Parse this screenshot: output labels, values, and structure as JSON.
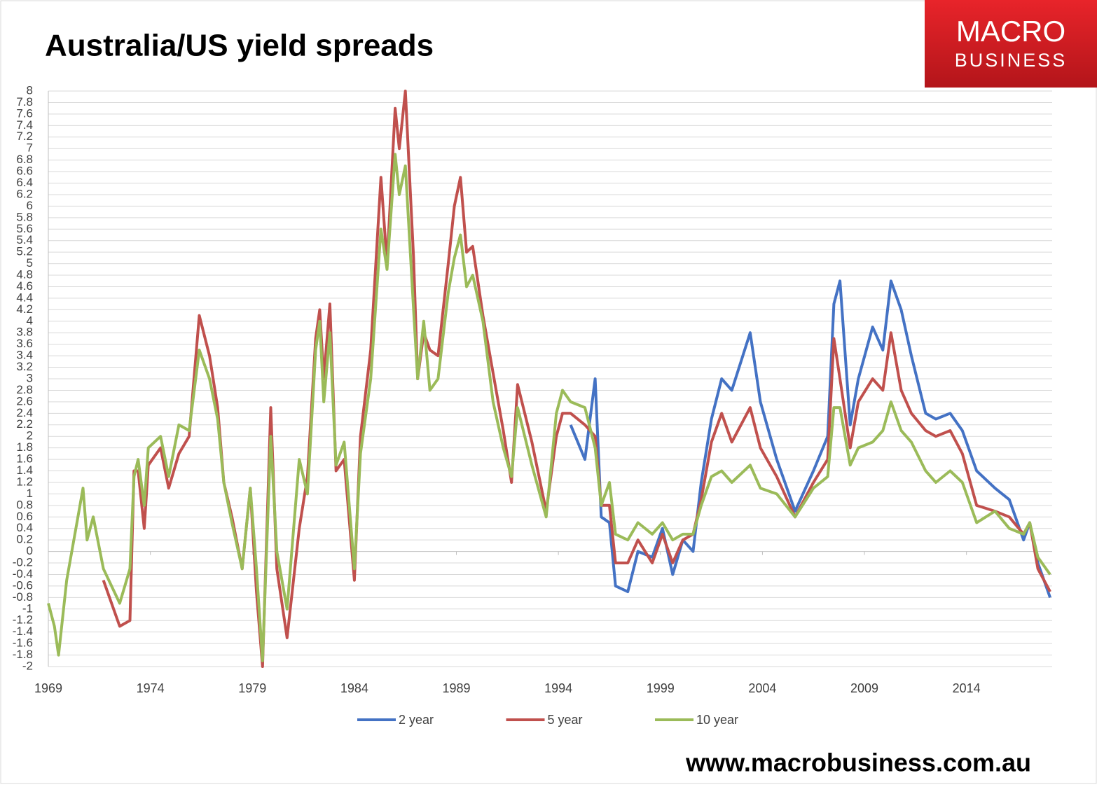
{
  "chart_data": {
    "type": "line",
    "title": "Australia/US yield spreads",
    "x": [
      1969.0,
      1969.3,
      1969.5,
      1969.9,
      1970.4,
      1970.7,
      1970.9,
      1971.2,
      1971.7,
      1972.5,
      1973.0,
      1973.2,
      1973.4,
      1973.7,
      1973.9,
      1974.5,
      1974.9,
      1975.4,
      1975.9,
      1976.4,
      1976.9,
      1977.3,
      1977.6,
      1978.0,
      1978.5,
      1978.9,
      1979.2,
      1979.5,
      1979.9,
      1980.2,
      1980.7,
      1981.3,
      1981.7,
      1982.1,
      1982.3,
      1982.5,
      1982.8,
      1983.1,
      1983.5,
      1984.0,
      1984.3,
      1984.8,
      1985.3,
      1985.6,
      1986.0,
      1986.2,
      1986.5,
      1986.9,
      1987.1,
      1987.4,
      1987.7,
      1988.1,
      1988.6,
      1988.9,
      1989.2,
      1989.5,
      1989.8,
      1990.3,
      1990.8,
      1991.3,
      1991.7,
      1992.0,
      1992.7,
      1993.4,
      1993.9,
      1994.2,
      1994.6,
      1995.3,
      1995.8,
      1996.1,
      1996.5,
      1996.8,
      1997.4,
      1997.9,
      1998.6,
      1999.1,
      1999.6,
      2000.1,
      2000.6,
      2001.0,
      2001.5,
      2002.0,
      2002.5,
      2003.4,
      2003.9,
      2004.7,
      2005.6,
      2006.5,
      2007.2,
      2007.5,
      2007.8,
      2008.3,
      2008.7,
      2009.4,
      2009.9,
      2010.3,
      2010.8,
      2011.3,
      2012.0,
      2012.5,
      2013.2,
      2013.8,
      2014.5,
      2015.4,
      2016.1,
      2016.8,
      2017.1,
      2017.5,
      2018.1
    ],
    "series": [
      {
        "name": "2 year",
        "color": "#4472c4",
        "values": [
          null,
          null,
          null,
          null,
          null,
          null,
          null,
          null,
          null,
          null,
          null,
          null,
          null,
          null,
          null,
          null,
          null,
          null,
          null,
          null,
          null,
          null,
          null,
          null,
          null,
          null,
          null,
          null,
          null,
          null,
          null,
          null,
          null,
          null,
          null,
          null,
          null,
          null,
          null,
          null,
          null,
          null,
          null,
          null,
          null,
          null,
          null,
          null,
          null,
          null,
          null,
          null,
          null,
          null,
          null,
          null,
          null,
          null,
          null,
          null,
          null,
          null,
          null,
          null,
          null,
          null,
          2.2,
          1.6,
          3.0,
          0.6,
          0.5,
          -0.6,
          -0.7,
          0.0,
          -0.1,
          0.4,
          -0.4,
          0.2,
          0.0,
          1.2,
          2.3,
          3.0,
          2.8,
          3.8,
          2.6,
          1.6,
          0.7,
          1.4,
          2.0,
          4.3,
          4.7,
          2.2,
          3.0,
          3.9,
          3.5,
          4.7,
          4.2,
          3.4,
          2.4,
          2.3,
          2.4,
          2.1,
          1.4,
          1.1,
          0.9,
          0.2,
          0.5,
          -0.2,
          -0.8
        ]
      },
      {
        "name": "5 year",
        "color": "#c0504d",
        "values": [
          null,
          null,
          null,
          null,
          null,
          null,
          null,
          null,
          -0.5,
          -1.3,
          -1.2,
          1.4,
          1.4,
          0.4,
          1.5,
          1.8,
          1.1,
          1.7,
          2.0,
          4.1,
          3.4,
          2.5,
          1.2,
          0.6,
          -0.3,
          1.1,
          -0.7,
          -2.0,
          2.5,
          -0.3,
          -1.5,
          0.4,
          1.3,
          3.7,
          4.2,
          3.0,
          4.3,
          1.4,
          1.6,
          -0.5,
          2.0,
          3.5,
          6.5,
          5.0,
          7.7,
          7.0,
          8.0,
          5.1,
          3.0,
          3.8,
          3.5,
          3.4,
          5.0,
          6.0,
          6.5,
          5.2,
          5.3,
          4.1,
          3.1,
          2.1,
          1.2,
          2.9,
          1.9,
          0.7,
          2.0,
          2.4,
          2.4,
          2.2,
          2.0,
          0.8,
          0.8,
          -0.2,
          -0.2,
          0.2,
          -0.2,
          0.3,
          -0.2,
          0.2,
          0.3,
          0.9,
          1.9,
          2.4,
          1.9,
          2.5,
          1.8,
          1.3,
          0.6,
          1.2,
          1.6,
          3.7,
          3.0,
          1.8,
          2.6,
          3.0,
          2.8,
          3.8,
          2.8,
          2.4,
          2.1,
          2.0,
          2.1,
          1.7,
          0.8,
          0.7,
          0.6,
          0.3,
          0.5,
          -0.3,
          -0.7
        ]
      },
      {
        "name": "10 year",
        "color": "#9bbb59",
        "values": [
          -0.9,
          -1.3,
          -1.8,
          -0.5,
          0.5,
          1.1,
          0.2,
          0.6,
          -0.3,
          -0.9,
          -0.3,
          1.3,
          1.6,
          0.8,
          1.8,
          2.0,
          1.3,
          2.2,
          2.1,
          3.5,
          3.0,
          2.3,
          1.2,
          0.5,
          -0.3,
          1.1,
          -0.3,
          -1.9,
          2.0,
          0.0,
          -1.0,
          1.6,
          1.0,
          3.5,
          4.0,
          2.6,
          3.8,
          1.5,
          1.9,
          -0.3,
          1.7,
          3.0,
          5.6,
          4.9,
          6.9,
          6.2,
          6.7,
          4.2,
          3.0,
          4.0,
          2.8,
          3.0,
          4.5,
          5.1,
          5.5,
          4.6,
          4.8,
          4.0,
          2.6,
          1.8,
          1.3,
          2.5,
          1.5,
          0.6,
          2.4,
          2.8,
          2.6,
          2.5,
          1.8,
          0.8,
          1.2,
          0.3,
          0.2,
          0.5,
          0.3,
          0.5,
          0.2,
          0.3,
          0.3,
          0.8,
          1.3,
          1.4,
          1.2,
          1.5,
          1.1,
          1.0,
          0.6,
          1.1,
          1.3,
          2.5,
          2.5,
          1.5,
          1.8,
          1.9,
          2.1,
          2.6,
          2.1,
          1.9,
          1.4,
          1.2,
          1.4,
          1.2,
          0.5,
          0.7,
          0.4,
          0.3,
          0.5,
          -0.1,
          -0.4
        ]
      }
    ],
    "xlim": [
      1969,
      2018.2
    ],
    "xticks": [
      1969,
      1974,
      1979,
      1984,
      1989,
      1994,
      1999,
      2004,
      2009,
      2014
    ],
    "ylim": [
      -2,
      8
    ],
    "yticks": [
      -2,
      -1.8,
      -1.6,
      -1.4,
      -1.2,
      -1,
      -0.8,
      -0.6,
      -0.4,
      -0.2,
      0,
      0.2,
      0.4,
      0.6,
      0.8,
      1,
      1.2,
      1.4,
      1.6,
      1.8,
      2,
      2.2,
      2.4,
      2.6,
      2.8,
      3,
      3.2,
      3.4,
      3.6,
      3.8,
      4,
      4.2,
      4.4,
      4.6,
      4.8,
      5,
      5.2,
      5.4,
      5.6,
      5.8,
      6,
      6.2,
      6.4,
      6.6,
      6.8,
      7,
      7.2,
      7.4,
      7.6,
      7.8,
      8
    ],
    "grid": true,
    "legend": "bottom"
  },
  "branding": {
    "logo_top": "MACRO",
    "logo_bottom": "BUSINESS",
    "website": "www.macrobusiness.com.au"
  }
}
